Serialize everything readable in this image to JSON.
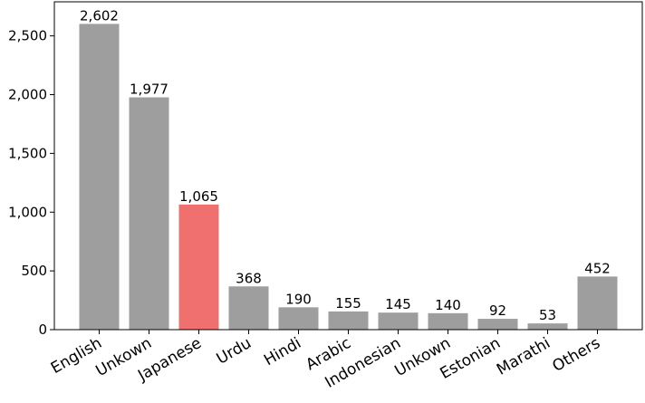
{
  "chart_data": {
    "type": "bar",
    "categories": [
      "English",
      "Unkown",
      "Japanese",
      "Urdu",
      "Hindi",
      "Arabic",
      "Indonesian",
      "Unkown",
      "Estonian",
      "Marathi",
      "Others"
    ],
    "values": [
      2602,
      1977,
      1065,
      368,
      190,
      155,
      145,
      140,
      92,
      53,
      452
    ],
    "value_labels": [
      "2,602",
      "1,977",
      "1,065",
      "368",
      "190",
      "155",
      "145",
      "140",
      "92",
      "53",
      "452"
    ],
    "colors": [
      "#9e9e9e",
      "#9e9e9e",
      "#f07070",
      "#9e9e9e",
      "#9e9e9e",
      "#9e9e9e",
      "#9e9e9e",
      "#9e9e9e",
      "#9e9e9e",
      "#9e9e9e",
      "#9e9e9e"
    ],
    "ylim": [
      0,
      2790
    ],
    "yticks": [
      0,
      500,
      {
        "value": 1000,
        "label": "1,000"
      },
      {
        "value": 1500,
        "label": "1,500"
      },
      {
        "value": 2000,
        "label": "2,000"
      },
      {
        "value": 2500,
        "label": "2,500"
      }
    ]
  }
}
